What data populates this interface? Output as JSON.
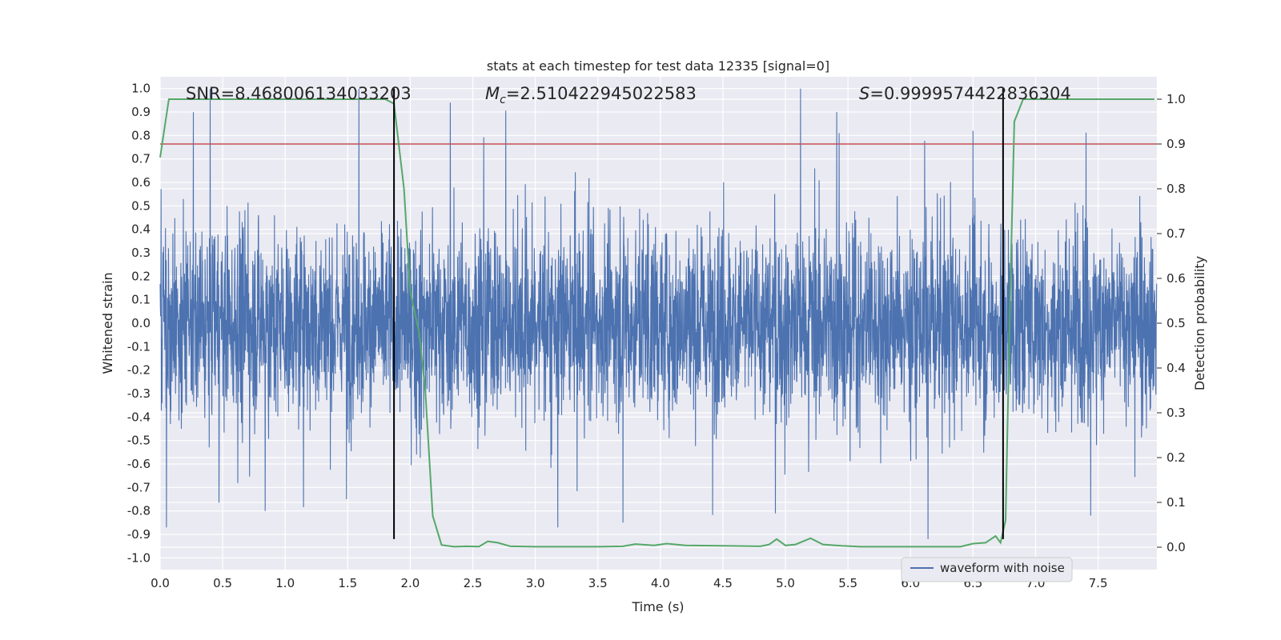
{
  "chart_data": {
    "type": "line",
    "title": "stats at each timestep for test data 12335 [signal=0]",
    "xlabel": "Time (s)",
    "ylabel_left": "Whitened strain",
    "ylabel_right": "Detection probability",
    "xlim": [
      0.0,
      7.97
    ],
    "ylim_left": [
      -1.05,
      1.05
    ],
    "ylim_right": [
      -0.05,
      1.05
    ],
    "x_ticks": [
      "0.0",
      "0.5",
      "1.0",
      "1.5",
      "2.0",
      "2.5",
      "3.0",
      "3.5",
      "4.0",
      "4.5",
      "5.0",
      "5.5",
      "6.0",
      "6.5",
      "7.0",
      "7.5"
    ],
    "y_ticks_left": [
      "1.0",
      "0.9",
      "0.8",
      "0.7",
      "0.6",
      "0.5",
      "0.4",
      "0.3",
      "0.2",
      "0.1",
      "0.0",
      "-0.1",
      "-0.2",
      "-0.3",
      "-0.4",
      "-0.5",
      "-0.6",
      "-0.7",
      "-0.8",
      "-0.9",
      "-1.0"
    ],
    "y_ticks_right": [
      "1.0",
      "0.9",
      "0.8",
      "0.7",
      "0.6",
      "0.5",
      "0.4",
      "0.3",
      "0.2",
      "0.1",
      "0.0"
    ],
    "grid": true,
    "legend_position": "lower-right",
    "annotations": {
      "snr": "SNR=8.468006134033203",
      "mc_symbol": "M",
      "mc_sub": "c",
      "mc_value": "=2.510422945022583",
      "s_symbol": "S",
      "s_value": "=0.9999574422836304"
    },
    "series": [
      {
        "name": "waveform with noise",
        "axis": "left",
        "color": "#4c72b0",
        "kind": "noisy-waveform",
        "envelope_typical": [
          -0.35,
          0.42
        ],
        "samples_per_second": 512,
        "spikes": [
          {
            "x": 1.59,
            "y": 1.0
          },
          {
            "x": 2.32,
            "y": 0.94
          },
          {
            "x": 5.12,
            "y": 1.0
          },
          {
            "x": 5.41,
            "y": 0.9
          },
          {
            "x": 5.43,
            "y": 0.81
          },
          {
            "x": 6.5,
            "y": 0.82
          },
          {
            "x": 0.05,
            "y": -0.87
          },
          {
            "x": 0.84,
            "y": -0.8
          },
          {
            "x": 3.7,
            "y": -0.85
          },
          {
            "x": 4.92,
            "y": -0.81
          },
          {
            "x": 6.14,
            "y": -0.92
          },
          {
            "x": 7.44,
            "y": -0.82
          },
          {
            "x": 1.49,
            "y": -0.75
          },
          {
            "x": 3.18,
            "y": -0.87
          }
        ]
      },
      {
        "name": "detection probability",
        "axis": "right",
        "color": "#55a868",
        "points": [
          [
            0.0,
            0.87
          ],
          [
            0.07,
            1.0
          ],
          [
            0.1,
            1.0
          ],
          [
            1.7,
            1.0
          ],
          [
            1.8,
            1.0
          ],
          [
            1.87,
            0.99
          ],
          [
            1.95,
            0.8
          ],
          [
            2.0,
            0.57
          ],
          [
            2.07,
            0.48
          ],
          [
            2.12,
            0.35
          ],
          [
            2.18,
            0.07
          ],
          [
            2.25,
            0.005
          ],
          [
            2.35,
            0.001
          ],
          [
            2.45,
            0.002
          ],
          [
            2.55,
            0.0015
          ],
          [
            2.62,
            0.013
          ],
          [
            2.7,
            0.01
          ],
          [
            2.8,
            0.002
          ],
          [
            3.0,
            0.001
          ],
          [
            3.5,
            0.001
          ],
          [
            3.7,
            0.002
          ],
          [
            3.8,
            0.007
          ],
          [
            3.95,
            0.004
          ],
          [
            4.05,
            0.008
          ],
          [
            4.2,
            0.004
          ],
          [
            4.5,
            0.003
          ],
          [
            4.8,
            0.002
          ],
          [
            4.87,
            0.006
          ],
          [
            4.93,
            0.018
          ],
          [
            5.0,
            0.004
          ],
          [
            5.08,
            0.006
          ],
          [
            5.2,
            0.02
          ],
          [
            5.3,
            0.006
          ],
          [
            5.45,
            0.003
          ],
          [
            5.6,
            0.001
          ],
          [
            6.0,
            0.001
          ],
          [
            6.4,
            0.001
          ],
          [
            6.5,
            0.008
          ],
          [
            6.6,
            0.01
          ],
          [
            6.68,
            0.025
          ],
          [
            6.72,
            0.01
          ],
          [
            6.76,
            0.06
          ],
          [
            6.8,
            0.6
          ],
          [
            6.83,
            0.95
          ],
          [
            6.9,
            1.0
          ],
          [
            7.0,
            1.0
          ],
          [
            7.95,
            1.0
          ]
        ]
      }
    ],
    "threshold_line": {
      "axis": "right",
      "value": 0.9,
      "color": "#c44e52"
    },
    "vertical_markers": {
      "x": [
        1.87,
        6.74
      ],
      "y_range_left": [
        -0.92,
        1.0
      ],
      "color": "#000000"
    }
  }
}
